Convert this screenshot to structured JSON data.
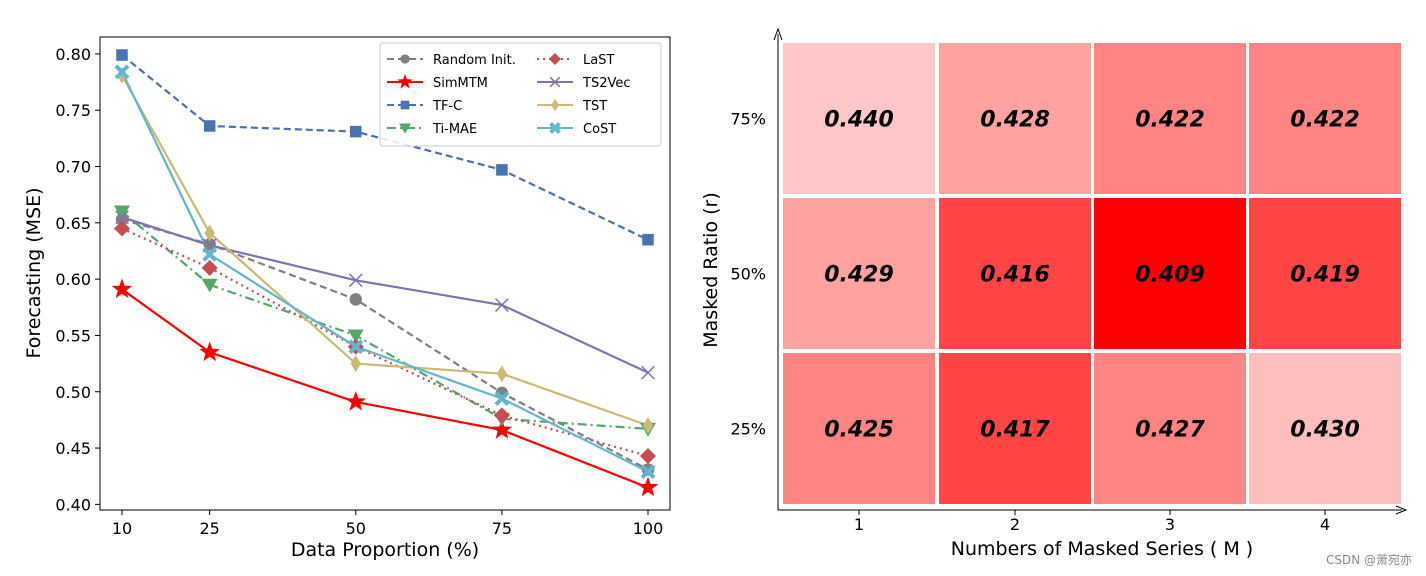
{
  "watermark": "CSDN @萧宛亦",
  "chart_data": [
    {
      "type": "line",
      "xlabel": "Data Proportion (%)",
      "ylabel": "Forecasting (MSE)",
      "x": [
        10,
        25,
        50,
        75,
        100
      ],
      "x_ticks": [
        "10",
        "25",
        "50",
        "75",
        "100"
      ],
      "ylim": [
        0.395,
        0.815
      ],
      "y_ticks": [
        "0.40",
        "0.45",
        "0.50",
        "0.55",
        "0.60",
        "0.65",
        "0.70",
        "0.75",
        "0.80"
      ],
      "grid": false,
      "legend_position": "top-right",
      "series": [
        {
          "name": "Random Init.",
          "values": [
            0.653,
            0.631,
            0.582,
            0.499,
            0.431
          ],
          "color": "#808080",
          "dash": "dashed",
          "marker": "circle"
        },
        {
          "name": "SimMTM",
          "values": [
            0.591,
            0.535,
            0.491,
            0.466,
            0.415
          ],
          "color": "#ff0000",
          "dash": "solid",
          "marker": "star"
        },
        {
          "name": "TF-C",
          "values": [
            0.799,
            0.736,
            0.731,
            0.697,
            0.635
          ],
          "color": "#4c72b0",
          "dash": "dashed",
          "marker": "square"
        },
        {
          "name": "Ti-MAE",
          "values": [
            0.66,
            0.595,
            0.55,
            0.476,
            0.467
          ],
          "color": "#55a868",
          "dash": "dashdot",
          "marker": "triangle-down"
        },
        {
          "name": "LaST",
          "values": [
            0.645,
            0.61,
            0.54,
            0.479,
            0.443
          ],
          "color": "#c44e52",
          "dash": "dotted",
          "marker": "diamond"
        },
        {
          "name": "TS2Vec",
          "values": [
            0.655,
            0.63,
            0.599,
            0.577,
            0.517
          ],
          "color": "#8172b3",
          "dash": "solid",
          "marker": "x"
        },
        {
          "name": "TST",
          "values": [
            0.781,
            0.641,
            0.525,
            0.516,
            0.47
          ],
          "color": "#ccb974",
          "dash": "solid",
          "marker": "thin-diamond"
        },
        {
          "name": "CoST",
          "values": [
            0.784,
            0.622,
            0.54,
            0.494,
            0.429
          ],
          "color": "#64b5cd",
          "dash": "solid",
          "marker": "x-filled"
        }
      ]
    },
    {
      "type": "heatmap",
      "xlabel": "Numbers of Masked Series ( M )",
      "ylabel": "Masked Ratio (r)",
      "x_categories": [
        "1",
        "2",
        "3",
        "4"
      ],
      "y_categories": [
        "75%",
        "50%",
        "25%"
      ],
      "values": [
        [
          "0.440",
          "0.428",
          "0.422",
          "0.422"
        ],
        [
          "0.429",
          "0.416",
          "0.409",
          "0.419"
        ],
        [
          "0.425",
          "0.417",
          "0.427",
          "0.430"
        ]
      ],
      "colors": [
        [
          "#ffc7c7",
          "#ffa2a2",
          "#ff8585",
          "#ff8585"
        ],
        [
          "#ffa2a2",
          "#ff4545",
          "#ff0000",
          "#ff4545"
        ],
        [
          "#ff8585",
          "#ff4545",
          "#ff8585",
          "#ffbebe"
        ]
      ]
    }
  ]
}
